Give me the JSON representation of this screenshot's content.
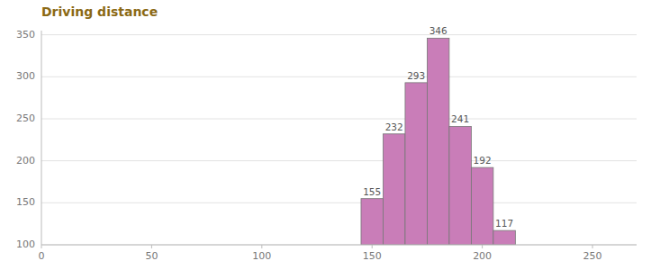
{
  "chart_data": {
    "type": "histogram",
    "title": "Driving distance",
    "bins": [
      145,
      155,
      165,
      175,
      185,
      195,
      205,
      215
    ],
    "values": [
      155,
      232,
      293,
      346,
      241,
      192,
      117
    ],
    "color": "#C97DB8",
    "xlim": [
      0,
      270
    ],
    "xticks": [
      0,
      50,
      100,
      150,
      200,
      250
    ],
    "ylim": [
      100,
      355
    ],
    "yticks": [
      100,
      150,
      200,
      250,
      300,
      350
    ],
    "grid": true,
    "data_labels": true
  }
}
